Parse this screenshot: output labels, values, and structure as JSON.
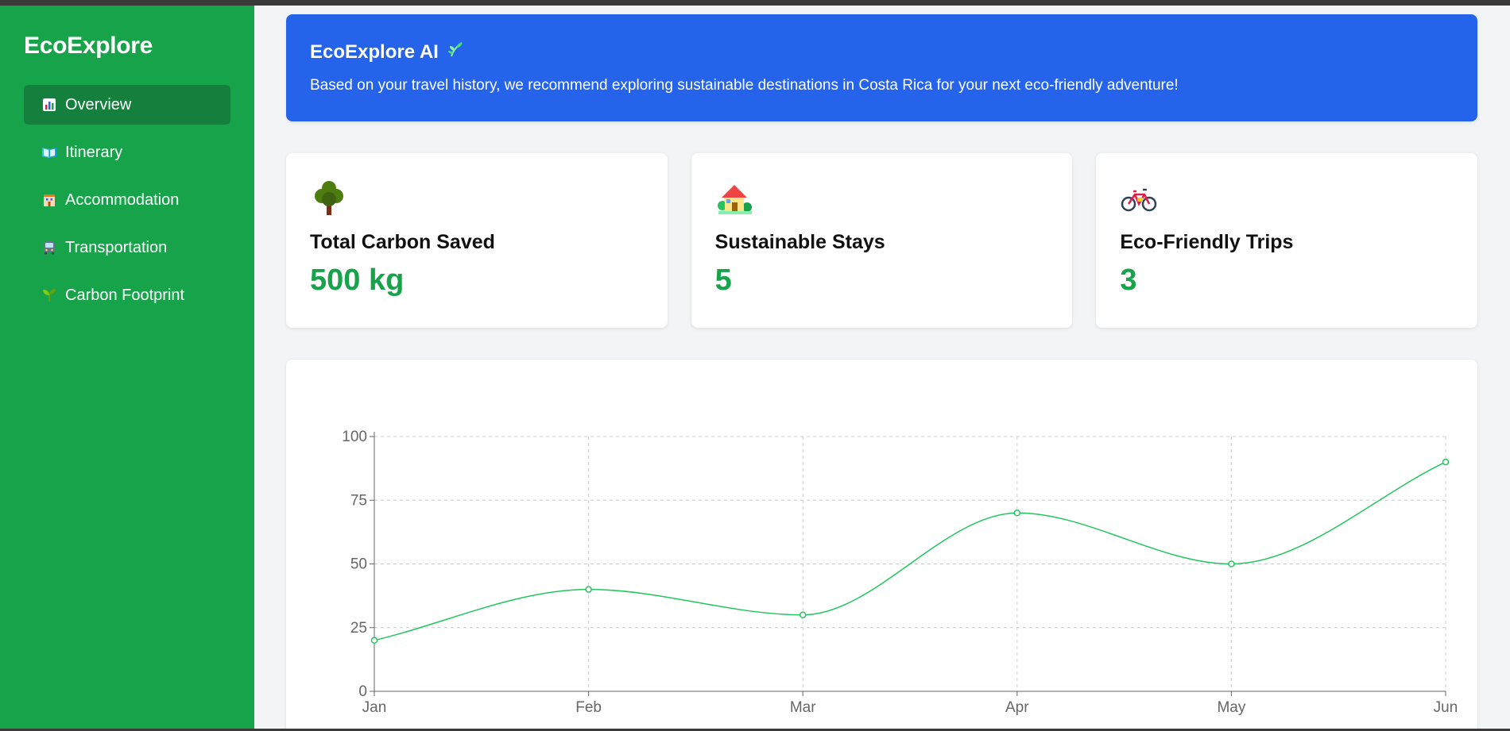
{
  "sidebar": {
    "brand": "EcoExplore",
    "items": [
      {
        "label": "Overview",
        "icon": "bar-chart-icon",
        "active": true
      },
      {
        "label": "Itinerary",
        "icon": "book-icon",
        "active": false
      },
      {
        "label": "Accommodation",
        "icon": "hotel-icon",
        "active": false
      },
      {
        "label": "Transportation",
        "icon": "bus-icon",
        "active": false
      },
      {
        "label": "Carbon Footprint",
        "icon": "seedling-icon",
        "active": false
      }
    ]
  },
  "ai_banner": {
    "title": "EcoExplore AI",
    "icon": "herb-icon",
    "message": "Based on your travel history, we recommend exploring sustainable destinations in Costa Rica for your next eco-friendly adventure!"
  },
  "cards": [
    {
      "icon": "tree-icon",
      "label": "Total Carbon Saved",
      "value": "500 kg"
    },
    {
      "icon": "house-icon",
      "label": "Sustainable Stays",
      "value": "5"
    },
    {
      "icon": "bicycle-icon",
      "label": "Eco-Friendly Trips",
      "value": "3"
    }
  ],
  "colors": {
    "sidebar": "#16a34a",
    "sidebar_active": "#15803d",
    "banner": "#2563eb",
    "accent_value": "#16a34a",
    "line": "#22c55e"
  },
  "chart_data": {
    "type": "line",
    "categories": [
      "Jan",
      "Feb",
      "Mar",
      "Apr",
      "May",
      "Jun"
    ],
    "series": [
      {
        "values": [
          20,
          40,
          30,
          70,
          50,
          90
        ]
      }
    ],
    "ylim": [
      0,
      100
    ],
    "yticks": [
      0,
      25,
      50,
      75,
      100
    ],
    "grid": true,
    "smooth": true
  }
}
